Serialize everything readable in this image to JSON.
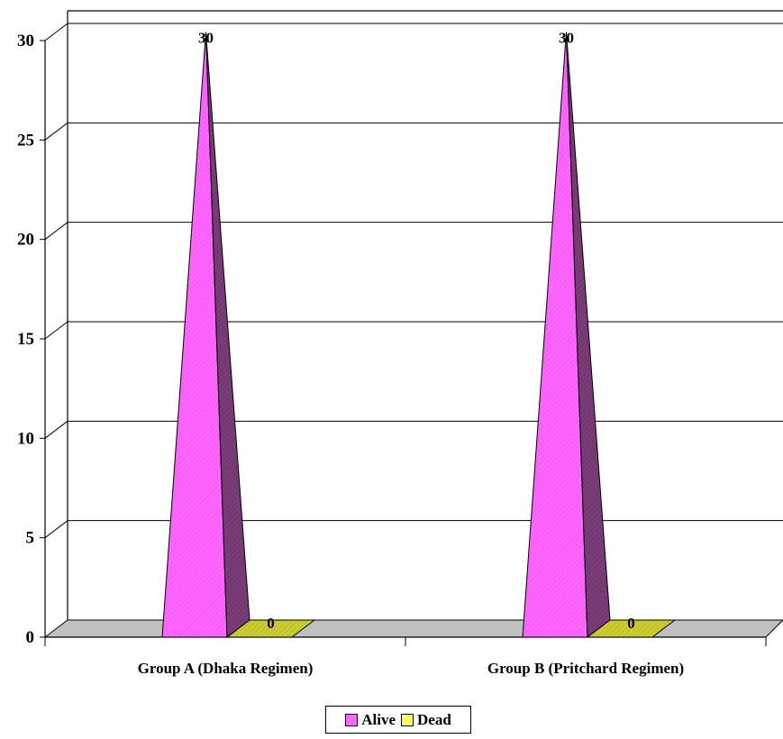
{
  "chart_data": {
    "type": "bar",
    "style": "3d-pyramid",
    "categories": [
      "Group A (Dhaka Regimen)",
      "Group B  (Pritchard Regimen)"
    ],
    "series": [
      {
        "name": "Alive",
        "values": [
          30,
          30
        ],
        "color": "#ff66ff",
        "side_color": "#7a3d78"
      },
      {
        "name": "Dead",
        "values": [
          0,
          0
        ],
        "color": "#cccc33",
        "side_color": "#8a8a1a"
      }
    ],
    "data_labels": [
      [
        "30",
        "30"
      ],
      [
        "0",
        "0"
      ]
    ],
    "y_ticks": [
      "0",
      "5",
      "10",
      "15",
      "20",
      "25",
      "30"
    ],
    "ylim": [
      0,
      30
    ],
    "grid": true,
    "legend_position": "bottom",
    "floor_color": "#c0c0c0"
  }
}
